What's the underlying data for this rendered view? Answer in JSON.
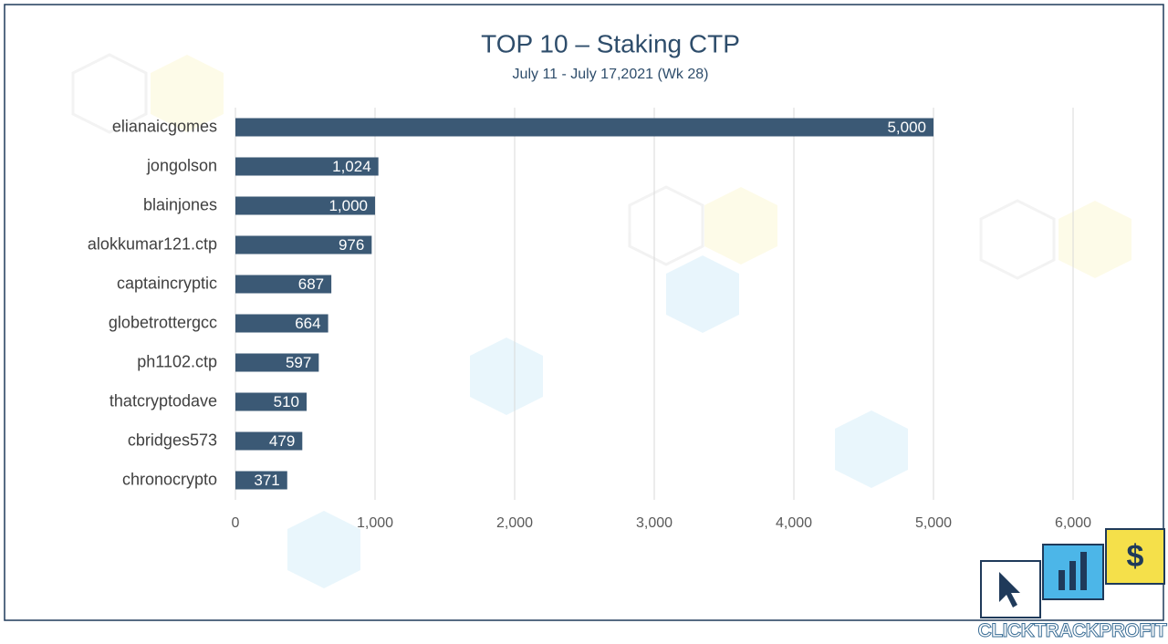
{
  "chart_data": {
    "type": "bar",
    "orientation": "horizontal",
    "title": "TOP 10 – Staking CTP",
    "subtitle": "July 11 - July 17,2021 (Wk 28)",
    "categories": [
      "elianaicgomes",
      "jongolson",
      "blainjones",
      "alokkumar121.ctp",
      "captaincryptic",
      "globetrottergcc",
      "ph1102.ctp",
      "thatcryptodave",
      "cbridges573",
      "chronocrypto"
    ],
    "values": [
      5000,
      1024,
      1000,
      976,
      687,
      664,
      597,
      510,
      479,
      371
    ],
    "value_labels": [
      "5,000",
      "1,024",
      "1,000",
      "976",
      "687",
      "664",
      "597",
      "510",
      "479",
      "371"
    ],
    "color": "#3b5975",
    "xlim": [
      0,
      6000
    ],
    "xticks": [
      0,
      {
        "value": 1000,
        "label": "1,000"
      },
      {
        "value": 2000,
        "label": "2,000"
      },
      {
        "value": 3000,
        "label": "3,000"
      },
      {
        "value": 4000,
        "label": "4,000"
      },
      {
        "value": 5000,
        "label": "5,000"
      },
      {
        "value": 6000,
        "label": "6,000"
      }
    ],
    "grid": true
  },
  "logo": {
    "parts": [
      "CLICK",
      "TRACK",
      "PROFIT"
    ]
  }
}
